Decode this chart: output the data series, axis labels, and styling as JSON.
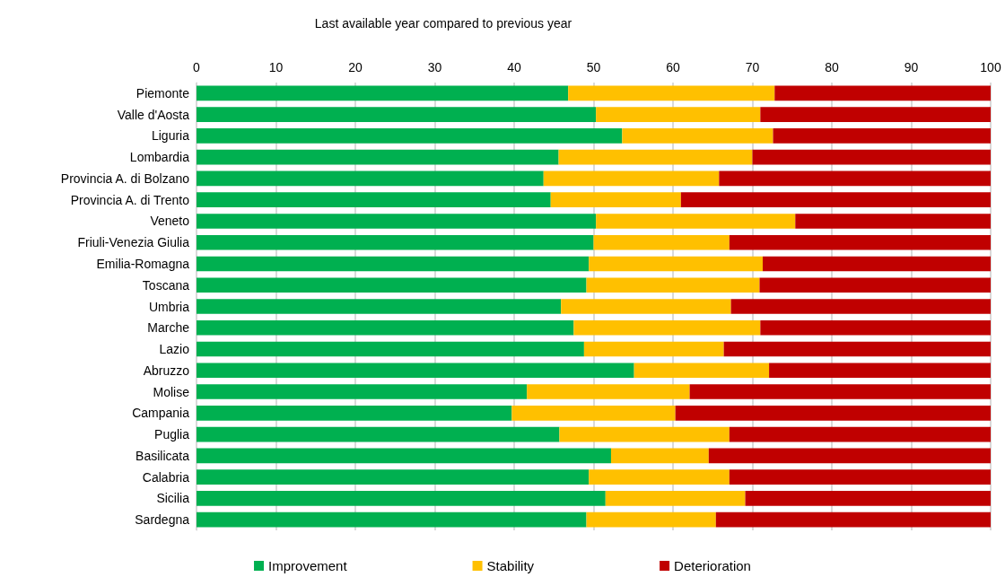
{
  "chart_data": {
    "type": "bar",
    "orientation": "horizontal",
    "stacked": true,
    "title": "Last available year compared to previous year",
    "categories": [
      "Piemonte",
      "Valle d'Aosta",
      "Liguria",
      "Lombardia",
      "Provincia A. di Bolzano",
      "Provincia A. di Trento",
      "Veneto",
      "Friuli-Venezia Giulia",
      "Emilia-Romagna",
      "Toscana",
      "Umbria",
      "Marche",
      "Lazio",
      "Abruzzo",
      "Molise",
      "Campania",
      "Puglia",
      "Basilicata",
      "Calabria",
      "Sicilia",
      "Sardegna"
    ],
    "series": [
      {
        "name": "Improvement",
        "color": "#00b050",
        "values": [
          46.8,
          50.3,
          53.6,
          45.6,
          43.7,
          44.6,
          50.3,
          50.0,
          49.4,
          49.1,
          45.9,
          47.5,
          48.8,
          55.1,
          41.6,
          39.7,
          45.7,
          52.2,
          49.4,
          51.5,
          49.1
        ]
      },
      {
        "name": "Stability",
        "color": "#ffc000",
        "values": [
          26.0,
          20.7,
          19.0,
          24.4,
          22.1,
          16.4,
          25.1,
          17.1,
          21.9,
          21.8,
          21.4,
          23.5,
          17.6,
          17.0,
          20.5,
          20.6,
          21.4,
          12.3,
          17.7,
          17.6,
          16.3
        ]
      },
      {
        "name": "Deterioration",
        "color": "#c00000",
        "values": [
          27.2,
          29.0,
          27.4,
          30.0,
          34.2,
          39.0,
          24.6,
          32.9,
          28.7,
          29.1,
          32.7,
          29.0,
          33.6,
          27.9,
          37.9,
          39.7,
          32.9,
          35.5,
          32.9,
          30.9,
          34.6
        ]
      }
    ],
    "xlim": [
      0,
      100
    ],
    "xticks": [
      0,
      10,
      20,
      30,
      40,
      50,
      60,
      70,
      80,
      90,
      100
    ],
    "grid": "x",
    "legend": "bottom"
  }
}
